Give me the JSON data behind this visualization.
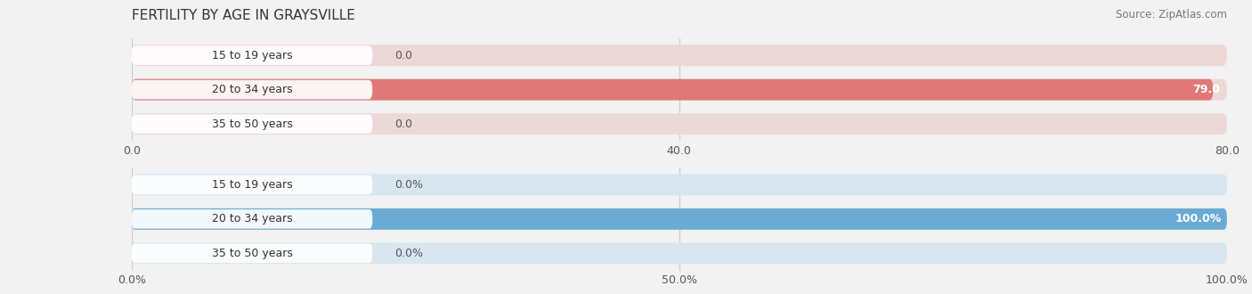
{
  "title": "FERTILITY BY AGE IN GRAYSVILLE",
  "source": "Source: ZipAtlas.com",
  "top_chart": {
    "categories": [
      "15 to 19 years",
      "20 to 34 years",
      "35 to 50 years"
    ],
    "values": [
      0.0,
      79.0,
      0.0
    ],
    "xlim": [
      0,
      80.0
    ],
    "xticks": [
      0.0,
      40.0,
      80.0
    ],
    "xtick_labels": [
      "0.0",
      "40.0",
      "80.0"
    ],
    "bar_color": "#e07878",
    "bar_bg_color": "#edd8d8",
    "value_threshold": 5.0,
    "is_percent": false
  },
  "bottom_chart": {
    "categories": [
      "15 to 19 years",
      "20 to 34 years",
      "35 to 50 years"
    ],
    "values": [
      0.0,
      100.0,
      0.0
    ],
    "xlim": [
      0,
      100.0
    ],
    "xticks": [
      0.0,
      50.0,
      100.0
    ],
    "xtick_labels": [
      "0.0%",
      "50.0%",
      "100.0%"
    ],
    "bar_color": "#6aaad4",
    "bar_bg_color": "#d8e6f0",
    "value_threshold": 5.0,
    "is_percent": true
  },
  "background_color": "#f2f2f2",
  "bar_height": 0.62,
  "label_bg_color": "#ffffff",
  "category_fontsize": 9,
  "value_fontsize": 9,
  "tick_fontsize": 9,
  "title_fontsize": 11,
  "source_fontsize": 8.5,
  "grid_color": "#cccccc"
}
